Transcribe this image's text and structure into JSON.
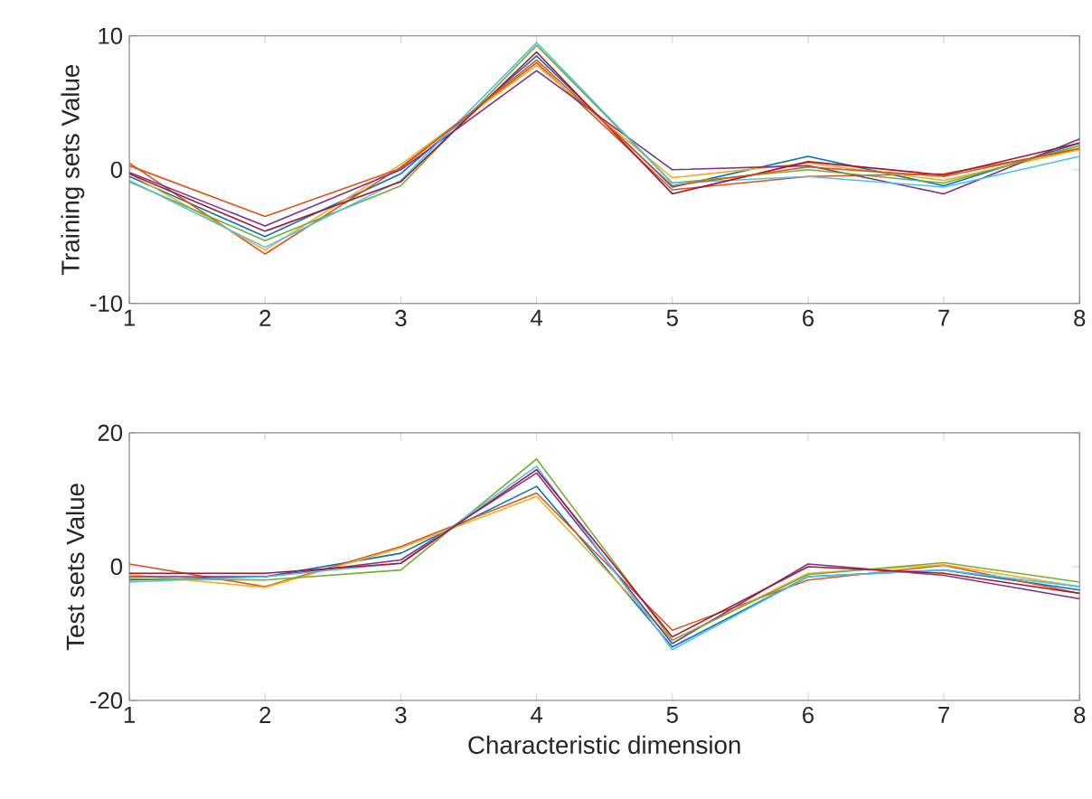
{
  "chart_data": [
    {
      "type": "line",
      "ylabel": "Training sets Value",
      "x": [
        1,
        2,
        3,
        4,
        5,
        6,
        7,
        8
      ],
      "xlim": [
        1,
        8
      ],
      "xticks": [
        1,
        2,
        3,
        4,
        5,
        6,
        7,
        8
      ],
      "ylim": [
        -10,
        10
      ],
      "yticks": [
        -10,
        0,
        10
      ],
      "series": [
        {
          "color": "#0072bd",
          "values": [
            -0.5,
            -5.0,
            -0.3,
            8.5,
            -1.3,
            1.0,
            -1.2,
            2.0
          ]
        },
        {
          "color": "#d95319",
          "values": [
            0.5,
            -6.3,
            0.2,
            8.0,
            -1.5,
            -0.5,
            -0.3,
            1.5
          ]
        },
        {
          "color": "#edb120",
          "values": [
            -0.3,
            -6.0,
            0.4,
            7.8,
            -0.6,
            0.5,
            -0.8,
            1.5
          ]
        },
        {
          "color": "#7e2f8e",
          "values": [
            -0.2,
            -4.2,
            0.0,
            7.4,
            0.0,
            0.3,
            -1.8,
            2.3
          ]
        },
        {
          "color": "#77ac30",
          "values": [
            -0.9,
            -5.3,
            -1.2,
            9.3,
            -1.0,
            0.0,
            -1.0,
            1.8
          ]
        },
        {
          "color": "#4dbeee",
          "values": [
            -0.8,
            -5.8,
            -0.8,
            9.5,
            -1.0,
            -0.5,
            -1.3,
            1.0
          ]
        },
        {
          "color": "#a2142f",
          "values": [
            -0.3,
            -4.6,
            -0.9,
            8.8,
            -1.8,
            0.6,
            -0.4,
            2.0
          ]
        },
        {
          "color": "#d95319",
          "values": [
            0.3,
            -3.5,
            0.1,
            8.2,
            -1.2,
            0.2,
            -0.5,
            1.6
          ]
        }
      ]
    },
    {
      "type": "line",
      "xlabel": "Characteristic dimension",
      "ylabel": "Test sets Value",
      "x": [
        1,
        2,
        3,
        4,
        5,
        6,
        7,
        8
      ],
      "xlim": [
        1,
        8
      ],
      "xticks": [
        1,
        2,
        3,
        4,
        5,
        6,
        7,
        8
      ],
      "ylim": [
        -20,
        20
      ],
      "yticks": [
        -20,
        0,
        20
      ],
      "series": [
        {
          "color": "#0072bd",
          "values": [
            -2.0,
            -1.5,
            2.0,
            12.0,
            -12.0,
            -1.5,
            -0.5,
            -3.5
          ]
        },
        {
          "color": "#d95319",
          "values": [
            0.4,
            -3.0,
            3.0,
            11.0,
            -9.5,
            -2.0,
            0.2,
            -4.0
          ]
        },
        {
          "color": "#edb120",
          "values": [
            -1.2,
            -3.1,
            2.8,
            10.5,
            -11.0,
            -1.0,
            0.3,
            -3.0
          ]
        },
        {
          "color": "#7e2f8e",
          "values": [
            -1.5,
            -1.5,
            1.0,
            14.0,
            -11.5,
            0.4,
            -1.3,
            -4.8
          ]
        },
        {
          "color": "#77ac30",
          "values": [
            -1.8,
            -2.0,
            -0.5,
            16.1,
            -11.0,
            -1.2,
            0.6,
            -2.3
          ]
        },
        {
          "color": "#4dbeee",
          "values": [
            -2.3,
            -1.5,
            0.5,
            15.0,
            -12.4,
            -1.5,
            -0.5,
            -3.0
          ]
        },
        {
          "color": "#a2142f",
          "values": [
            -1.0,
            -1.0,
            0.5,
            14.5,
            -10.5,
            0.0,
            -1.0,
            -4.0
          ]
        }
      ]
    }
  ]
}
